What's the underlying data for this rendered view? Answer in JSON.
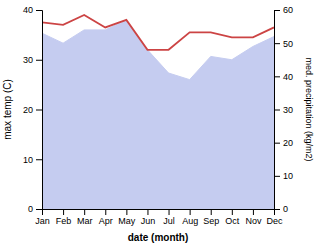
{
  "chart_data": {
    "type": "line",
    "x_label": "date (month)",
    "y_label": "max temp (C)",
    "y2_label": "med. precipitation (kg/m2)",
    "categories": [
      "Jan",
      "Feb",
      "Mar",
      "Apr",
      "May",
      "Jun",
      "Jul",
      "Aug",
      "Sep",
      "Oct",
      "Nov",
      "Dec"
    ],
    "series": [
      {
        "type": "area",
        "axis": "y2",
        "color": "#c5ccf0",
        "values": [
          53,
          50,
          54,
          54,
          57,
          48,
          41,
          39,
          46,
          45,
          49,
          52
        ]
      },
      {
        "type": "line",
        "axis": "y",
        "color": "#cc4444",
        "values": [
          37.5,
          37.0,
          39.0,
          36.5,
          38.0,
          32.0,
          32.0,
          35.5,
          35.5,
          34.5,
          34.5,
          36.5
        ]
      }
    ],
    "ylim": [
      0,
      40
    ],
    "yticks": [
      0,
      10,
      20,
      30,
      40
    ],
    "y2lim": [
      0,
      60
    ],
    "y2ticks": [
      0,
      10,
      20,
      30,
      40,
      50,
      60
    ],
    "grid": false
  }
}
